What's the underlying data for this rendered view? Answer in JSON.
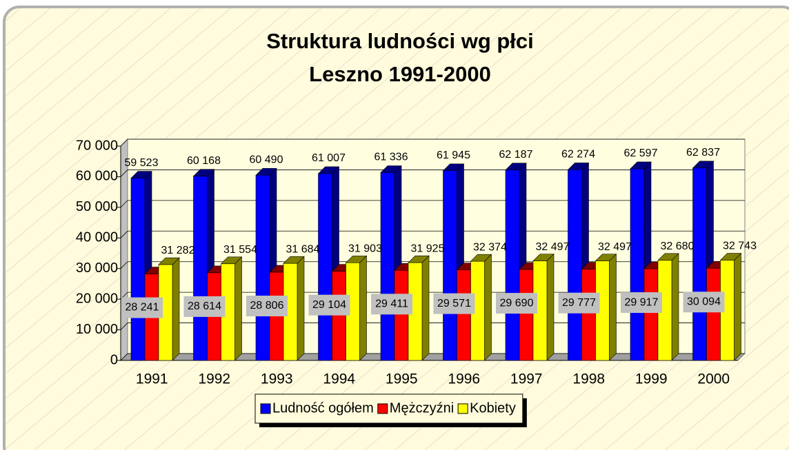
{
  "chart_data": {
    "type": "bar3d",
    "title": "Struktura ludności wg płci",
    "subtitle": "Leszno 1991-2000",
    "categories": [
      "1991",
      "1992",
      "1993",
      "1994",
      "1995",
      "1996",
      "1997",
      "1998",
      "1999",
      "2000"
    ],
    "series": [
      {
        "name": "Ludność ogółem",
        "color": "#0000ff",
        "values": [
          59523,
          60168,
          60490,
          61007,
          61336,
          61945,
          62187,
          62274,
          62597,
          62837
        ],
        "value_labels": [
          "59 523",
          "60 168",
          "60 490",
          "61 007",
          "61 336",
          "61 945",
          "62 187",
          "62 274",
          "62 597",
          "62 837"
        ]
      },
      {
        "name": "Mężczyźni",
        "color": "#ff0000",
        "values": [
          28241,
          28614,
          28806,
          29104,
          29411,
          29571,
          29690,
          29777,
          29917,
          30094
        ],
        "value_labels": [
          "28 241",
          "28 614",
          "28 806",
          "29 104",
          "29 411",
          "29 571",
          "29 690",
          "29 777",
          "29 917",
          "30 094"
        ]
      },
      {
        "name": "Kobiety",
        "color": "#ffff00",
        "values": [
          31282,
          31554,
          31684,
          31903,
          31925,
          32374,
          32497,
          32497,
          32680,
          32743
        ],
        "value_labels": [
          "31 282",
          "31 554",
          "31 684",
          "31 903",
          "31 925",
          "32 374",
          "32 497",
          "32 497",
          "32 680",
          "32 743"
        ]
      }
    ],
    "ylim": [
      0,
      70000
    ],
    "yticks": [
      0,
      {
        "value": 10000,
        "label": "10 000"
      },
      {
        "value": 20000,
        "label": "20 000"
      },
      {
        "value": 30000,
        "label": "30 000"
      },
      {
        "value": 40000,
        "label": "40 000"
      },
      {
        "value": 50000,
        "label": "50 000"
      },
      {
        "value": 60000,
        "label": "60 000"
      },
      {
        "value": 70000,
        "label": "70 000"
      }
    ],
    "grid": true,
    "legend": "bottom"
  }
}
